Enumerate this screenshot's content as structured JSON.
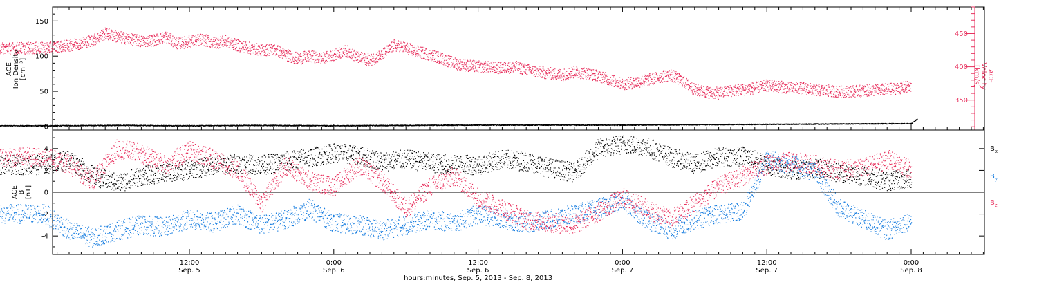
{
  "colors": {
    "black": "#000000",
    "pink": "#e8325f",
    "blue": "#1a7fe0"
  },
  "xaxis": {
    "title": "hours:minutes, Sep.  5, 2013 - Sep.  8, 2013",
    "range_hours": [
      0,
      72
    ],
    "ticks": [
      {
        "t": 12,
        "time": "12:00",
        "day": "Sep. 5"
      },
      {
        "t": 24,
        "time": "0:00",
        "day": "Sep. 6"
      },
      {
        "t": 36,
        "time": "12:00",
        "day": "Sep. 6"
      },
      {
        "t": 48,
        "time": "0:00",
        "day": "Sep. 7"
      },
      {
        "t": 60,
        "time": "12:00",
        "day": "Sep. 7"
      },
      {
        "t": 72,
        "time": "0:00",
        "day": "Sep. 8"
      }
    ]
  },
  "chart_data": [
    {
      "type": "scatter",
      "ylabel_left": [
        "ACE",
        "Ion Density",
        "[cm⁻³]"
      ],
      "ylabel_right": [
        "ACE",
        "Velocity",
        "[km/s]"
      ],
      "ylim_left": [
        -5,
        170
      ],
      "yticks_left": [
        0,
        50,
        100,
        150
      ],
      "ylim_right": [
        305,
        490
      ],
      "yticks_right": [
        350,
        400,
        450
      ],
      "series": [
        {
          "axis": "left",
          "color": "black",
          "points": [
            [
              0,
              1
            ],
            [
              6,
              1.5
            ],
            [
              12,
              1
            ],
            [
              18,
              1.5
            ],
            [
              24,
              1
            ],
            [
              30,
              1.5
            ],
            [
              36,
              2
            ],
            [
              42,
              2
            ],
            [
              48,
              2
            ],
            [
              54,
              2.5
            ],
            [
              60,
              3
            ],
            [
              66,
              3.5
            ],
            [
              72,
              4
            ],
            [
              72.5,
              11
            ]
          ]
        },
        {
          "axis": "right",
          "color": "pink",
          "points": [
            [
              0,
              428
            ],
            [
              1,
              430
            ],
            [
              2,
              432
            ],
            [
              3,
              436
            ],
            [
              4,
              440
            ],
            [
              5,
              450
            ],
            [
              6,
              445
            ],
            [
              7,
              442
            ],
            [
              8,
              438
            ],
            [
              9,
              440
            ],
            [
              10,
              445
            ],
            [
              11,
              435
            ],
            [
              12,
              438
            ],
            [
              13,
              441
            ],
            [
              14,
              436
            ],
            [
              15,
              438
            ],
            [
              16,
              432
            ],
            [
              17,
              428
            ],
            [
              18,
              425
            ],
            [
              19,
              426
            ],
            [
              20,
              418
            ],
            [
              21,
              412
            ],
            [
              22,
              416
            ],
            [
              23,
              412
            ],
            [
              24,
              418
            ],
            [
              25,
              424
            ],
            [
              26,
              414
            ],
            [
              27,
              410
            ],
            [
              28,
              418
            ],
            [
              29,
              432
            ],
            [
              30,
              428
            ],
            [
              31,
              422
            ],
            [
              32,
              418
            ],
            [
              33,
              412
            ],
            [
              34,
              405
            ],
            [
              35,
              402
            ],
            [
              36,
              400
            ],
            [
              37,
              399
            ],
            [
              38,
              398
            ],
            [
              39,
              400
            ],
            [
              40,
              396
            ],
            [
              41,
              392
            ],
            [
              42,
              390
            ],
            [
              43,
              388
            ],
            [
              44,
              392
            ],
            [
              45,
              390
            ],
            [
              46,
              386
            ],
            [
              47,
              380
            ],
            [
              48,
              374
            ],
            [
              49,
              376
            ],
            [
              50,
              380
            ],
            [
              51,
              384
            ],
            [
              52,
              388
            ],
            [
              53,
              378
            ],
            [
              54,
              365
            ],
            [
              55,
              362
            ],
            [
              56,
              360
            ],
            [
              57,
              364
            ],
            [
              58,
              366
            ],
            [
              59,
              368
            ],
            [
              60,
              372
            ],
            [
              61,
              370
            ],
            [
              62,
              368
            ],
            [
              63,
              368
            ],
            [
              64,
              365
            ],
            [
              65,
              364
            ],
            [
              66,
              362
            ],
            [
              67,
              363
            ],
            [
              68,
              364
            ],
            [
              69,
              365
            ],
            [
              70,
              366
            ],
            [
              71,
              368
            ],
            [
              72,
              370
            ]
          ]
        }
      ]
    },
    {
      "type": "scatter",
      "ylabel": [
        "ACE",
        "B",
        "[nT]"
      ],
      "ylim": [
        -5.7,
        5.7
      ],
      "yticks": [
        -4,
        -2,
        0,
        2,
        4
      ],
      "zero_line": true,
      "series": [
        {
          "name": "Bx",
          "color": "black",
          "points": [
            [
              0,
              2.5
            ],
            [
              2,
              3
            ],
            [
              4,
              1.5
            ],
            [
              6,
              0.8
            ],
            [
              8,
              1.5
            ],
            [
              10,
              1.8
            ],
            [
              12,
              2
            ],
            [
              14,
              2.5
            ],
            [
              16,
              2.6
            ],
            [
              18,
              2.5
            ],
            [
              20,
              2.8
            ],
            [
              22,
              3.2
            ],
            [
              24,
              3.6
            ],
            [
              26,
              3.4
            ],
            [
              28,
              2.8
            ],
            [
              30,
              3
            ],
            [
              32,
              2.7
            ],
            [
              34,
              2.5
            ],
            [
              36,
              2.5
            ],
            [
              38,
              3
            ],
            [
              40,
              2.8
            ],
            [
              42,
              2.2
            ],
            [
              44,
              1.8
            ],
            [
              46,
              4
            ],
            [
              48,
              4.4
            ],
            [
              50,
              4.2
            ],
            [
              52,
              3.2
            ],
            [
              54,
              2.6
            ],
            [
              56,
              3.2
            ],
            [
              58,
              3.3
            ],
            [
              60,
              2.5
            ],
            [
              62,
              2
            ],
            [
              64,
              2.2
            ],
            [
              66,
              1.8
            ],
            [
              68,
              1.5
            ],
            [
              70,
              1
            ],
            [
              72,
              1.2
            ]
          ]
        },
        {
          "name": "By",
          "color": "blue",
          "points": [
            [
              0,
              -2
            ],
            [
              2,
              -3.5
            ],
            [
              4,
              -4.2
            ],
            [
              6,
              -3.5
            ],
            [
              8,
              -3
            ],
            [
              10,
              -3.2
            ],
            [
              12,
              -2.5
            ],
            [
              14,
              -2.8
            ],
            [
              16,
              -2
            ],
            [
              18,
              -3
            ],
            [
              20,
              -2.5
            ],
            [
              22,
              -1.5
            ],
            [
              24,
              -2.8
            ],
            [
              26,
              -3
            ],
            [
              28,
              -3.5
            ],
            [
              30,
              -3
            ],
            [
              32,
              -2.5
            ],
            [
              34,
              -2.8
            ],
            [
              36,
              -2
            ],
            [
              38,
              -2.5
            ],
            [
              40,
              -2.8
            ],
            [
              42,
              -2.5
            ],
            [
              44,
              -2
            ],
            [
              46,
              -1.5
            ],
            [
              48,
              -0.8
            ],
            [
              50,
              -2.5
            ],
            [
              52,
              -3.5
            ],
            [
              54,
              -2.5
            ],
            [
              56,
              -2
            ],
            [
              58,
              -1.8
            ],
            [
              60,
              3
            ],
            [
              62,
              2.5
            ],
            [
              64,
              1.8
            ],
            [
              66,
              -1.5
            ],
            [
              68,
              -2.5
            ],
            [
              70,
              -3.5
            ],
            [
              72,
              -2.5
            ]
          ]
        },
        {
          "name": "Bz",
          "color": "pink",
          "points": [
            [
              0,
              3.2
            ],
            [
              2,
              2.5
            ],
            [
              4,
              1
            ],
            [
              6,
              4
            ],
            [
              8,
              3.5
            ],
            [
              10,
              2.5
            ],
            [
              12,
              3.8
            ],
            [
              14,
              3
            ],
            [
              16,
              2
            ],
            [
              18,
              -1
            ],
            [
              20,
              2.5
            ],
            [
              22,
              1
            ],
            [
              24,
              0.5
            ],
            [
              26,
              2.5
            ],
            [
              28,
              1
            ],
            [
              30,
              -1.5
            ],
            [
              32,
              0.5
            ],
            [
              34,
              1.5
            ],
            [
              36,
              -0.5
            ],
            [
              38,
              -1.5
            ],
            [
              40,
              -2.5
            ],
            [
              42,
              -2.8
            ],
            [
              44,
              -3
            ],
            [
              46,
              -1.8
            ],
            [
              48,
              -0.5
            ],
            [
              50,
              -1.5
            ],
            [
              52,
              -2.5
            ],
            [
              54,
              -1
            ],
            [
              56,
              0.5
            ],
            [
              58,
              1.5
            ],
            [
              60,
              2.5
            ],
            [
              62,
              2.8
            ],
            [
              64,
              2.5
            ],
            [
              66,
              2
            ],
            [
              68,
              2.2
            ],
            [
              70,
              3
            ],
            [
              72,
              2
            ]
          ]
        }
      ]
    }
  ]
}
